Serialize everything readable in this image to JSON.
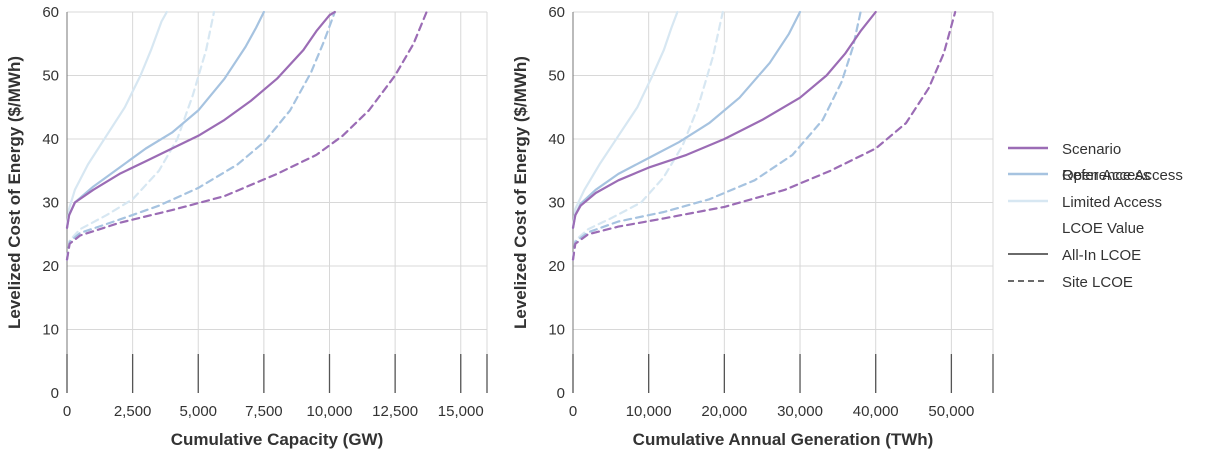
{
  "legend": {
    "scenario_title": "Scenario",
    "scenario_items": [
      {
        "label": "Open Access",
        "color": "#9b6cb5",
        "dash": false
      },
      {
        "label": "Reference Access",
        "color": "#a6c3e0",
        "dash": false
      },
      {
        "label": "Limited Access",
        "color": "#d7e7f2",
        "dash": false
      }
    ],
    "lcoe_title": "LCOE Value",
    "lcoe_items": [
      {
        "label": "All-In LCOE",
        "color": "#555555",
        "dash": false
      },
      {
        "label": "Site LCOE",
        "color": "#555555",
        "dash": true
      }
    ]
  },
  "chart_data": [
    {
      "type": "line",
      "xlabel": "Cumulative Capacity (GW)",
      "ylabel": "Levelized Cost of Energy ($/MWh)",
      "xlim": [
        0,
        16000
      ],
      "ylim": [
        0,
        60
      ],
      "x_ticks": [
        0,
        2500,
        5000,
        7500,
        10000,
        12500,
        15000
      ],
      "x_tick_labels": [
        "0",
        "2,500",
        "5,000",
        "7,500",
        "10,000",
        "12,500",
        "15,000"
      ],
      "y_ticks": [
        0,
        10,
        20,
        30,
        40,
        50,
        60
      ],
      "y_tick_labels": [
        "0",
        "10",
        "20",
        "30",
        "40",
        "50",
        "60"
      ],
      "grid": true,
      "series": [
        {
          "name": "Open Access",
          "lcoe": "All-In LCOE",
          "color": "#9b6cb5",
          "dash": false,
          "x": [
            0,
            80,
            300,
            1000,
            2000,
            3000,
            4000,
            5000,
            6000,
            7000,
            8000,
            9000,
            9500,
            10000,
            10200
          ],
          "y": [
            26,
            28,
            30,
            32,
            34.5,
            36.5,
            38.5,
            40.5,
            43,
            46,
            49.5,
            54,
            57,
            59.5,
            60
          ]
        },
        {
          "name": "Reference Access",
          "lcoe": "All-In LCOE",
          "color": "#a6c3e0",
          "dash": false,
          "x": [
            0,
            80,
            300,
            1000,
            2000,
            3000,
            4000,
            5000,
            6000,
            6800,
            7200,
            7500
          ],
          "y": [
            26,
            28,
            30,
            32.5,
            35.5,
            38.5,
            41,
            44.5,
            49.5,
            54.5,
            57.5,
            60
          ]
        },
        {
          "name": "Limited Access",
          "lcoe": "All-In LCOE",
          "color": "#d7e7f2",
          "dash": false,
          "x": [
            0,
            80,
            300,
            800,
            1500,
            2200,
            2800,
            3200,
            3600,
            3800
          ],
          "y": [
            26,
            29,
            32,
            36,
            40.5,
            45,
            50,
            54,
            58.5,
            60
          ]
        },
        {
          "name": "Open Access",
          "lcoe": "Site LCOE",
          "color": "#9b6cb5",
          "dash": true,
          "x": [
            0,
            100,
            500,
            2000,
            4000,
            6000,
            8000,
            9500,
            10500,
            11500,
            12500,
            13200,
            13700
          ],
          "y": [
            21,
            23.5,
            24.8,
            26.8,
            28.8,
            31,
            34.5,
            37.5,
            40.5,
            44.5,
            50,
            55,
            60
          ]
        },
        {
          "name": "Reference Access",
          "lcoe": "Site LCOE",
          "color": "#a6c3e0",
          "dash": true,
          "x": [
            0,
            100,
            500,
            2000,
            3500,
            5000,
            6500,
            7500,
            8500,
            9300,
            9800,
            10200
          ],
          "y": [
            21,
            23.8,
            25.2,
            27.3,
            29.5,
            32.3,
            36,
            39.5,
            44.5,
            50.5,
            55.5,
            60
          ]
        },
        {
          "name": "Limited Access",
          "lcoe": "Site LCOE",
          "color": "#d7e7f2",
          "dash": true,
          "x": [
            0,
            100,
            500,
            1500,
            2500,
            3500,
            4200,
            4800,
            5300,
            5600
          ],
          "y": [
            21,
            24,
            25.8,
            28,
            30.5,
            35,
            40,
            47,
            54,
            60
          ]
        }
      ]
    },
    {
      "type": "line",
      "xlabel": "Cumulative Annual Generation (TWh)",
      "ylabel": "Levelized Cost of Energy ($/MWh)",
      "xlim": [
        0,
        55500
      ],
      "ylim": [
        0,
        60
      ],
      "x_ticks": [
        0,
        10000,
        20000,
        30000,
        40000,
        50000
      ],
      "x_tick_labels": [
        "0",
        "10,000",
        "20,000",
        "30,000",
        "40,000",
        "50,000"
      ],
      "y_ticks": [
        0,
        10,
        20,
        30,
        40,
        50,
        60
      ],
      "y_tick_labels": [
        "0",
        "10",
        "20",
        "30",
        "40",
        "50",
        "60"
      ],
      "grid": true,
      "series": [
        {
          "name": "Open Access",
          "lcoe": "All-In LCOE",
          "color": "#9b6cb5",
          "dash": false,
          "x": [
            0,
            300,
            1000,
            3000,
            6000,
            10000,
            15000,
            20000,
            25000,
            30000,
            33500,
            36000,
            38000,
            40000
          ],
          "y": [
            26,
            28,
            29.5,
            31.5,
            33.5,
            35.5,
            37.5,
            40,
            43,
            46.5,
            50,
            53.5,
            57,
            60
          ]
        },
        {
          "name": "Reference Access",
          "lcoe": "All-In LCOE",
          "color": "#a6c3e0",
          "dash": false,
          "x": [
            0,
            300,
            1000,
            3000,
            6000,
            10000,
            14000,
            18000,
            22000,
            26000,
            28500,
            30000
          ],
          "y": [
            26,
            28,
            29.8,
            32,
            34.5,
            37,
            39.5,
            42.5,
            46.5,
            52,
            56.5,
            60
          ]
        },
        {
          "name": "Limited Access",
          "lcoe": "All-In LCOE",
          "color": "#d7e7f2",
          "dash": false,
          "x": [
            0,
            300,
            1500,
            3500,
            6000,
            8500,
            10500,
            12000,
            13000,
            13800
          ],
          "y": [
            26,
            29,
            32,
            36,
            40.5,
            45,
            50,
            54,
            57.5,
            60
          ]
        },
        {
          "name": "Open Access",
          "lcoe": "Site LCOE",
          "color": "#9b6cb5",
          "dash": true,
          "x": [
            0,
            300,
            2000,
            6000,
            12000,
            20000,
            28000,
            34000,
            40000,
            44000,
            47000,
            49000,
            50500
          ],
          "y": [
            21,
            23.5,
            25,
            26.2,
            27.5,
            29.3,
            32,
            35,
            38.5,
            42.5,
            48,
            53.5,
            60
          ]
        },
        {
          "name": "Reference Access",
          "lcoe": "Site LCOE",
          "color": "#a6c3e0",
          "dash": true,
          "x": [
            0,
            300,
            2000,
            6000,
            12000,
            18000,
            24000,
            29000,
            33000,
            35500,
            37000,
            38000
          ],
          "y": [
            21,
            23.8,
            25.3,
            27,
            28.5,
            30.5,
            33.5,
            37.5,
            43,
            49,
            54.5,
            60
          ]
        },
        {
          "name": "Limited Access",
          "lcoe": "Site LCOE",
          "color": "#d7e7f2",
          "dash": true,
          "x": [
            0,
            300,
            2000,
            5000,
            9000,
            12000,
            14500,
            16500,
            18500,
            19800
          ],
          "y": [
            21,
            24,
            25.8,
            27.5,
            30,
            34,
            39,
            45,
            53,
            60
          ]
        }
      ]
    }
  ]
}
